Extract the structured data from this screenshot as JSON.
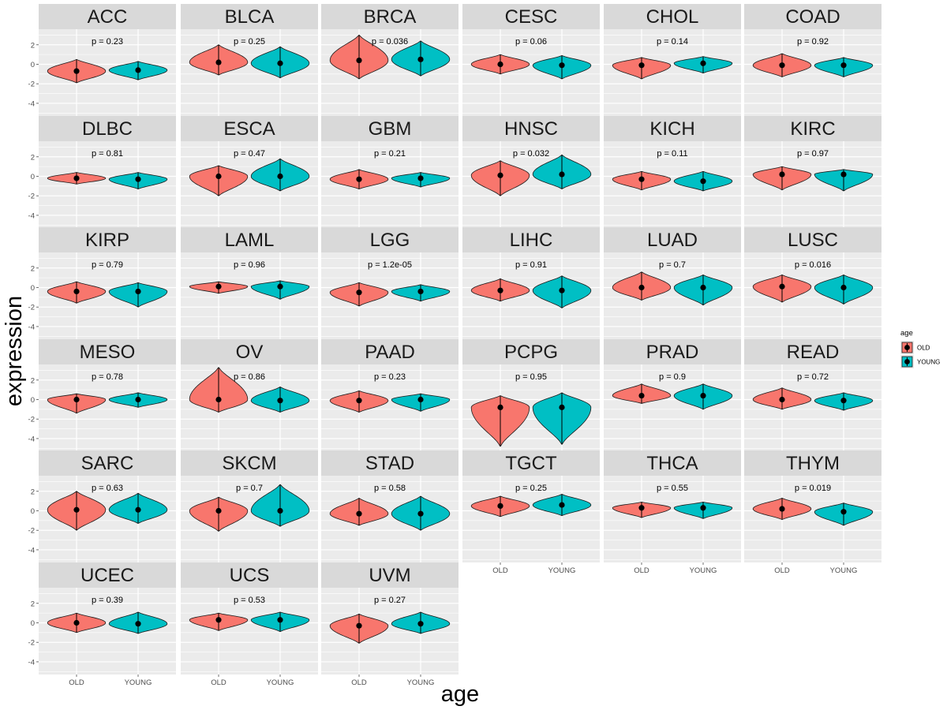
{
  "chart_data": {
    "type": "violin",
    "xlabel": "age",
    "ylabel": "expression",
    "ylim": [
      -5.3,
      3.6
    ],
    "yticks": [
      -4,
      -2,
      0,
      2
    ],
    "ytick_labels": [
      "-4",
      "-2",
      "0",
      "2"
    ],
    "categories": [
      "OLD",
      "YOUNG"
    ],
    "colors": {
      "OLD": "#F8766D",
      "YOUNG": "#00BFC4"
    },
    "legend": {
      "title": "age",
      "entries": [
        "OLD",
        "YOUNG"
      ],
      "placement": "right"
    },
    "grid": true,
    "panels": [
      {
        "name": "ACC",
        "p_label": "p = 0.23",
        "OLD": {
          "median": -0.7,
          "min": -1.9,
          "max": 0.5
        },
        "YOUNG": {
          "median": -0.6,
          "min": -1.6,
          "max": 0.3
        }
      },
      {
        "name": "BLCA",
        "p_label": "p = 0.25",
        "OLD": {
          "median": 0.2,
          "min": -1.1,
          "max": 2.0
        },
        "YOUNG": {
          "median": 0.1,
          "min": -1.4,
          "max": 1.8
        }
      },
      {
        "name": "BRCA",
        "p_label": "p = 0.036",
        "OLD": {
          "median": 0.4,
          "min": -1.5,
          "max": 3.0
        },
        "YOUNG": {
          "median": 0.5,
          "min": -1.2,
          "max": 2.4
        }
      },
      {
        "name": "CESC",
        "p_label": "p = 0.06",
        "OLD": {
          "median": 0.0,
          "min": -1.0,
          "max": 1.0
        },
        "YOUNG": {
          "median": -0.1,
          "min": -1.5,
          "max": 0.9
        }
      },
      {
        "name": "CHOL",
        "p_label": "p = 0.14",
        "OLD": {
          "median": -0.1,
          "min": -1.5,
          "max": 0.7
        },
        "YOUNG": {
          "median": 0.1,
          "min": -0.9,
          "max": 0.8
        }
      },
      {
        "name": "COAD",
        "p_label": "p = 0.92",
        "OLD": {
          "median": -0.1,
          "min": -1.3,
          "max": 1.1
        },
        "YOUNG": {
          "median": -0.1,
          "min": -1.3,
          "max": 0.7
        }
      },
      {
        "name": "DLBC",
        "p_label": "p = 0.81",
        "OLD": {
          "median": -0.2,
          "min": -0.8,
          "max": 0.4
        },
        "YOUNG": {
          "median": -0.3,
          "min": -1.3,
          "max": 0.4
        }
      },
      {
        "name": "ESCA",
        "p_label": "p = 0.47",
        "OLD": {
          "median": 0.0,
          "min": -2.0,
          "max": 1.1
        },
        "YOUNG": {
          "median": 0.0,
          "min": -1.5,
          "max": 1.8
        }
      },
      {
        "name": "GBM",
        "p_label": "p = 0.21",
        "OLD": {
          "median": -0.3,
          "min": -1.3,
          "max": 0.7
        },
        "YOUNG": {
          "median": -0.2,
          "min": -1.1,
          "max": 0.4
        }
      },
      {
        "name": "HNSC",
        "p_label": "p = 0.032",
        "OLD": {
          "median": 0.1,
          "min": -2.0,
          "max": 1.6
        },
        "YOUNG": {
          "median": 0.2,
          "min": -1.3,
          "max": 2.2
        }
      },
      {
        "name": "KICH",
        "p_label": "p = 0.11",
        "OLD": {
          "median": -0.3,
          "min": -1.4,
          "max": 0.5
        },
        "YOUNG": {
          "median": -0.5,
          "min": -1.5,
          "max": 0.5
        }
      },
      {
        "name": "KIRC",
        "p_label": "p = 0.97",
        "OLD": {
          "median": 0.2,
          "min": -1.4,
          "max": 1.0
        },
        "YOUNG": {
          "median": 0.2,
          "min": -1.5,
          "max": 0.7
        }
      },
      {
        "name": "KIRP",
        "p_label": "p = 0.79",
        "OLD": {
          "median": -0.4,
          "min": -1.6,
          "max": 0.6
        },
        "YOUNG": {
          "median": -0.4,
          "min": -2.0,
          "max": 0.5
        }
      },
      {
        "name": "LAML",
        "p_label": "p = 0.96",
        "OLD": {
          "median": 0.1,
          "min": -0.6,
          "max": 0.6
        },
        "YOUNG": {
          "median": 0.1,
          "min": -1.2,
          "max": 0.7
        }
      },
      {
        "name": "LGG",
        "p_label": "p = 1.2e-05",
        "OLD": {
          "median": -0.5,
          "min": -1.9,
          "max": 0.5
        },
        "YOUNG": {
          "median": -0.4,
          "min": -1.4,
          "max": 0.3
        }
      },
      {
        "name": "LIHC",
        "p_label": "p = 0.91",
        "OLD": {
          "median": -0.3,
          "min": -1.4,
          "max": 0.9
        },
        "YOUNG": {
          "median": -0.3,
          "min": -2.1,
          "max": 1.2
        }
      },
      {
        "name": "LUAD",
        "p_label": "p = 0.7",
        "OLD": {
          "median": 0.0,
          "min": -1.3,
          "max": 1.6
        },
        "YOUNG": {
          "median": 0.0,
          "min": -1.8,
          "max": 1.3
        }
      },
      {
        "name": "LUSC",
        "p_label": "p = 0.016",
        "OLD": {
          "median": 0.1,
          "min": -1.5,
          "max": 1.3
        },
        "YOUNG": {
          "median": 0.0,
          "min": -1.7,
          "max": 1.3
        }
      },
      {
        "name": "MESO",
        "p_label": "p = 0.78",
        "OLD": {
          "median": 0.0,
          "min": -1.4,
          "max": 0.6
        },
        "YOUNG": {
          "median": 0.0,
          "min": -0.8,
          "max": 0.7
        }
      },
      {
        "name": "OV",
        "p_label": "p = 0.86",
        "OLD": {
          "median": 0.0,
          "min": -1.3,
          "max": 3.3
        },
        "YOUNG": {
          "median": -0.1,
          "min": -1.3,
          "max": 1.3
        }
      },
      {
        "name": "PAAD",
        "p_label": "p = 0.23",
        "OLD": {
          "median": -0.1,
          "min": -1.3,
          "max": 0.9
        },
        "YOUNG": {
          "median": 0.0,
          "min": -1.2,
          "max": 0.6
        }
      },
      {
        "name": "PCPG",
        "p_label": "p = 0.95",
        "OLD": {
          "median": -0.8,
          "min": -4.8,
          "max": 0.4
        },
        "YOUNG": {
          "median": -0.8,
          "min": -4.6,
          "max": 0.7
        }
      },
      {
        "name": "PRAD",
        "p_label": "p = 0.9",
        "OLD": {
          "median": 0.4,
          "min": -0.4,
          "max": 1.6
        },
        "YOUNG": {
          "median": 0.4,
          "min": -1.0,
          "max": 1.6
        }
      },
      {
        "name": "READ",
        "p_label": "p = 0.72",
        "OLD": {
          "median": 0.0,
          "min": -1.0,
          "max": 1.2
        },
        "YOUNG": {
          "median": -0.1,
          "min": -1.1,
          "max": 0.7
        }
      },
      {
        "name": "SARC",
        "p_label": "p = 0.63",
        "OLD": {
          "median": 0.1,
          "min": -2.0,
          "max": 2.0
        },
        "YOUNG": {
          "median": 0.1,
          "min": -1.3,
          "max": 1.8
        }
      },
      {
        "name": "SKCM",
        "p_label": "p = 0.7",
        "OLD": {
          "median": 0.0,
          "min": -2.1,
          "max": 1.4
        },
        "YOUNG": {
          "median": 0.0,
          "min": -1.6,
          "max": 2.7
        }
      },
      {
        "name": "STAD",
        "p_label": "p = 0.58",
        "OLD": {
          "median": -0.3,
          "min": -1.5,
          "max": 1.3
        },
        "YOUNG": {
          "median": -0.3,
          "min": -2.0,
          "max": 1.5
        }
      },
      {
        "name": "TGCT",
        "p_label": "p = 0.25",
        "OLD": {
          "median": 0.5,
          "min": -0.6,
          "max": 1.5
        },
        "YOUNG": {
          "median": 0.6,
          "min": -0.5,
          "max": 1.7
        }
      },
      {
        "name": "THCA",
        "p_label": "p = 0.55",
        "OLD": {
          "median": 0.3,
          "min": -0.7,
          "max": 0.9
        },
        "YOUNG": {
          "median": 0.3,
          "min": -0.8,
          "max": 0.9
        }
      },
      {
        "name": "THYM",
        "p_label": "p = 0.019",
        "OLD": {
          "median": 0.2,
          "min": -0.9,
          "max": 1.3
        },
        "YOUNG": {
          "median": -0.1,
          "min": -1.5,
          "max": 0.8
        }
      },
      {
        "name": "UCEC",
        "p_label": "p = 0.39",
        "OLD": {
          "median": 0.0,
          "min": -1.0,
          "max": 1.0
        },
        "YOUNG": {
          "median": -0.1,
          "min": -1.1,
          "max": 1.1
        }
      },
      {
        "name": "UCS",
        "p_label": "p = 0.53",
        "OLD": {
          "median": 0.3,
          "min": -0.8,
          "max": 1.0
        },
        "YOUNG": {
          "median": 0.3,
          "min": -0.9,
          "max": 1.1
        }
      },
      {
        "name": "UVM",
        "p_label": "p = 0.27",
        "OLD": {
          "median": -0.3,
          "min": -2.1,
          "max": 0.9
        },
        "YOUNG": {
          "median": -0.1,
          "min": -1.1,
          "max": 1.1
        }
      }
    ]
  }
}
